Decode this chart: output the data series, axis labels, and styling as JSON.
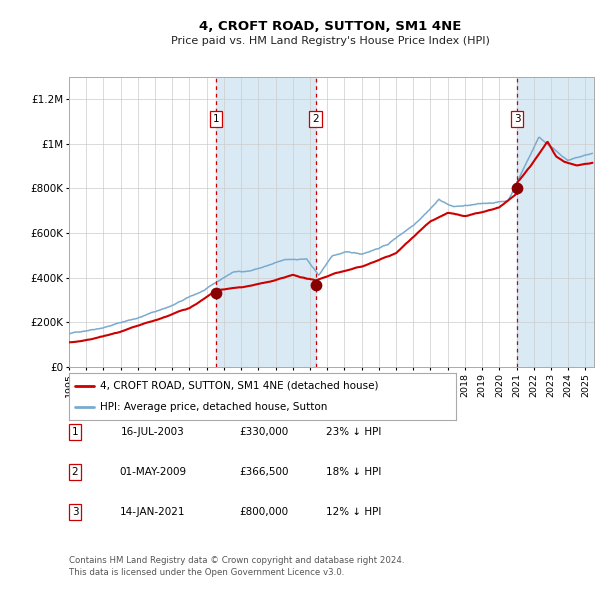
{
  "title": "4, CROFT ROAD, SUTTON, SM1 4NE",
  "subtitle": "Price paid vs. HM Land Registry's House Price Index (HPI)",
  "footer": "Contains HM Land Registry data © Crown copyright and database right 2024.\nThis data is licensed under the Open Government Licence v3.0.",
  "sales": [
    {
      "label": "1",
      "date": "16-JUL-2003",
      "price": 330000,
      "price_str": "£330,000",
      "pct": "23% ↓ HPI",
      "x_year": 2003.54
    },
    {
      "label": "2",
      "date": "01-MAY-2009",
      "price": 366500,
      "price_str": "£366,500",
      "pct": "18% ↓ HPI",
      "x_year": 2009.33
    },
    {
      "label": "3",
      "date": "14-JAN-2021",
      "price": 800000,
      "price_str": "£800,000",
      "pct": "12% ↓ HPI",
      "x_year": 2021.04
    }
  ],
  "red_line_color": "#cc0000",
  "blue_line_color": "#7aabcf",
  "shade_color": "#daeaf5",
  "marker_color": "#880000",
  "vline_color": "#cc0000",
  "grid_color": "#cccccc",
  "bg_color": "#ffffff",
  "x_start": 1995.0,
  "x_end": 2025.5,
  "y_min": 0,
  "y_max": 1300000,
  "yticks": [
    0,
    200000,
    400000,
    600000,
    800000,
    1000000,
    1200000
  ],
  "ytick_labels": [
    "£0",
    "£200K",
    "£400K",
    "£600K",
    "£800K",
    "£1M",
    "£1.2M"
  ],
  "xtick_years": [
    1995,
    1996,
    1997,
    1998,
    1999,
    2000,
    2001,
    2002,
    2003,
    2004,
    2005,
    2006,
    2007,
    2008,
    2009,
    2010,
    2011,
    2012,
    2013,
    2014,
    2015,
    2016,
    2017,
    2018,
    2019,
    2020,
    2021,
    2022,
    2023,
    2024,
    2025
  ],
  "legend_label_red": "4, CROFT ROAD, SUTTON, SM1 4NE (detached house)",
  "legend_label_blue": "HPI: Average price, detached house, Sutton"
}
